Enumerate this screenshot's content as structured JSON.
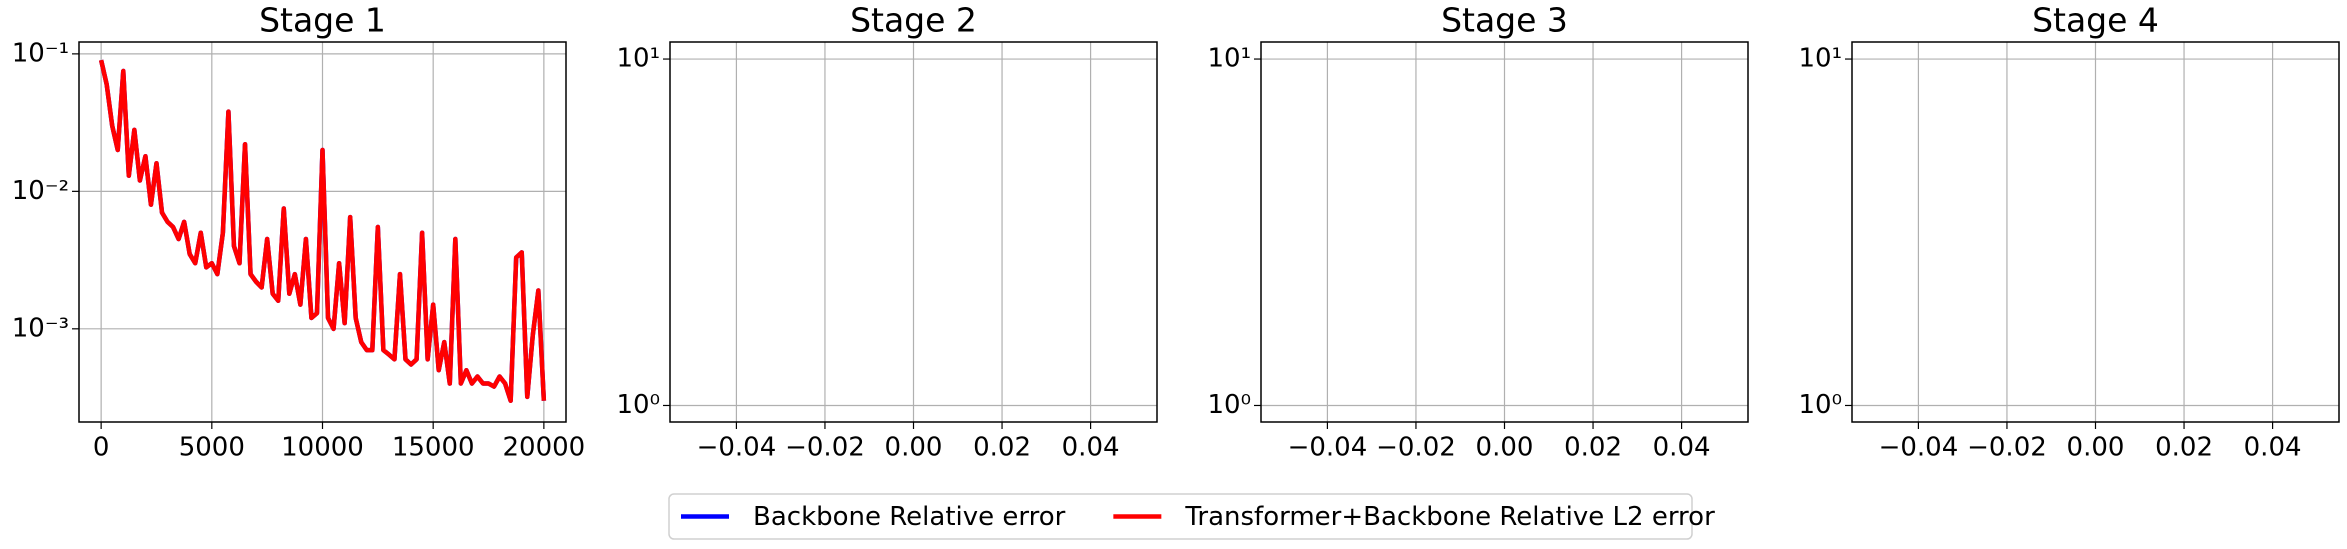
{
  "chart_data": [
    {
      "type": "line",
      "title": "Stage 1",
      "log_y": true,
      "grid": true,
      "x": [
        0,
        250,
        500,
        750,
        1000,
        1250,
        1500,
        1750,
        2000,
        2250,
        2500,
        2750,
        3000,
        3250,
        3500,
        3750,
        4000,
        4250,
        4500,
        4750,
        5000,
        5250,
        5500,
        5750,
        6000,
        6250,
        6500,
        6750,
        7000,
        7250,
        7500,
        7750,
        8000,
        8250,
        8500,
        8750,
        9000,
        9250,
        9500,
        9750,
        10000,
        10250,
        10500,
        10750,
        11000,
        11250,
        11500,
        11750,
        12000,
        12250,
        12500,
        12750,
        13000,
        13250,
        13500,
        13750,
        14000,
        14250,
        14500,
        14750,
        15000,
        15250,
        15500,
        15750,
        16000,
        16250,
        16500,
        16750,
        17000,
        17250,
        17500,
        17750,
        18000,
        18250,
        18500,
        18750,
        19000,
        19250,
        19500,
        19750,
        20000
      ],
      "series": [
        {
          "name": "Backbone Relative error",
          "color": "#0000ff",
          "values": [
            0.09,
            0.06,
            0.03,
            0.02,
            0.075,
            0.013,
            0.028,
            0.012,
            0.018,
            0.008,
            0.016,
            0.007,
            0.006,
            0.0055,
            0.0045,
            0.006,
            0.0035,
            0.003,
            0.005,
            0.0028,
            0.003,
            0.0025,
            0.005,
            0.038,
            0.004,
            0.003,
            0.022,
            0.0025,
            0.0022,
            0.002,
            0.0045,
            0.0018,
            0.0016,
            0.0075,
            0.0018,
            0.0025,
            0.0015,
            0.0045,
            0.0012,
            0.0013,
            0.02,
            0.0012,
            0.001,
            0.003,
            0.0011,
            0.0065,
            0.0012,
            0.0008,
            0.0007,
            0.0007,
            0.0055,
            0.0007,
            0.00065,
            0.0006,
            0.0025,
            0.0006,
            0.00055,
            0.0006,
            0.005,
            0.0006,
            0.0015,
            0.0005,
            0.0008,
            0.0004,
            0.0045,
            0.0004,
            0.0005,
            0.0004,
            0.00045,
            0.0004,
            0.0004,
            0.00038,
            0.00045,
            0.0004,
            0.0003,
            0.0033,
            0.0036,
            0.00032,
            0.0009,
            0.0019,
            0.0003
          ]
        },
        {
          "name": "Transformer+Backbone Relative L2 error",
          "color": "#ff0000",
          "values": [
            0.09,
            0.06,
            0.03,
            0.02,
            0.075,
            0.013,
            0.028,
            0.012,
            0.018,
            0.008,
            0.016,
            0.007,
            0.006,
            0.0055,
            0.0045,
            0.006,
            0.0035,
            0.003,
            0.005,
            0.0028,
            0.003,
            0.0025,
            0.005,
            0.038,
            0.004,
            0.003,
            0.022,
            0.0025,
            0.0022,
            0.002,
            0.0045,
            0.0018,
            0.0016,
            0.0075,
            0.0018,
            0.0025,
            0.0015,
            0.0045,
            0.0012,
            0.0013,
            0.02,
            0.0012,
            0.001,
            0.003,
            0.0011,
            0.0065,
            0.0012,
            0.0008,
            0.0007,
            0.0007,
            0.0055,
            0.0007,
            0.00065,
            0.0006,
            0.0025,
            0.0006,
            0.00055,
            0.0006,
            0.005,
            0.0006,
            0.0015,
            0.0005,
            0.0008,
            0.0004,
            0.0045,
            0.0004,
            0.0005,
            0.0004,
            0.00045,
            0.0004,
            0.0004,
            0.00038,
            0.00045,
            0.0004,
            0.0003,
            0.0033,
            0.0036,
            0.00032,
            0.0009,
            0.0019,
            0.0003
          ]
        }
      ],
      "xlim": [
        -1000,
        21000
      ],
      "xticks": [
        0,
        5000,
        10000,
        15000,
        20000
      ],
      "ylim": [
        0.00021,
        0.122
      ],
      "yticks": [
        {
          "value": 0.001,
          "label": "10⁻³"
        },
        {
          "value": 0.01,
          "label": "10⁻²"
        },
        {
          "value": 0.1,
          "label": "10⁻¹"
        }
      ]
    },
    {
      "type": "line",
      "title": "Stage 2",
      "log_y": true,
      "grid": true,
      "xlim": [
        -0.055,
        0.055
      ],
      "xticks": [
        {
          "value": -0.04,
          "label": "−0.04"
        },
        {
          "value": -0.02,
          "label": "−0.02"
        },
        {
          "value": 0,
          "label": "0.00"
        },
        {
          "value": 0.02,
          "label": "0.02"
        },
        {
          "value": 0.04,
          "label": "0.04"
        }
      ],
      "ylim": [
        0.896,
        11.2
      ],
      "yticks": [
        {
          "value": 1,
          "label": "10⁰"
        },
        {
          "value": 10,
          "label": "10¹"
        }
      ]
    },
    {
      "type": "line",
      "title": "Stage 3",
      "log_y": true,
      "grid": true,
      "xlim": [
        -0.055,
        0.055
      ],
      "xticks": [
        {
          "value": -0.04,
          "label": "−0.04"
        },
        {
          "value": -0.02,
          "label": "−0.02"
        },
        {
          "value": 0,
          "label": "0.00"
        },
        {
          "value": 0.02,
          "label": "0.02"
        },
        {
          "value": 0.04,
          "label": "0.04"
        }
      ],
      "ylim": [
        0.896,
        11.2
      ],
      "yticks": [
        {
          "value": 1,
          "label": "10⁰"
        },
        {
          "value": 10,
          "label": "10¹"
        }
      ]
    },
    {
      "type": "line",
      "title": "Stage 4",
      "log_y": true,
      "grid": true,
      "xlim": [
        -0.055,
        0.055
      ],
      "xticks": [
        {
          "value": -0.04,
          "label": "−0.04"
        },
        {
          "value": -0.02,
          "label": "−0.02"
        },
        {
          "value": 0,
          "label": "0.00"
        },
        {
          "value": 0.02,
          "label": "0.02"
        },
        {
          "value": 0.04,
          "label": "0.04"
        }
      ],
      "ylim": [
        0.896,
        11.2
      ],
      "yticks": [
        {
          "value": 1,
          "label": "10⁰"
        },
        {
          "value": 10,
          "label": "10¹"
        }
      ]
    }
  ]
}
